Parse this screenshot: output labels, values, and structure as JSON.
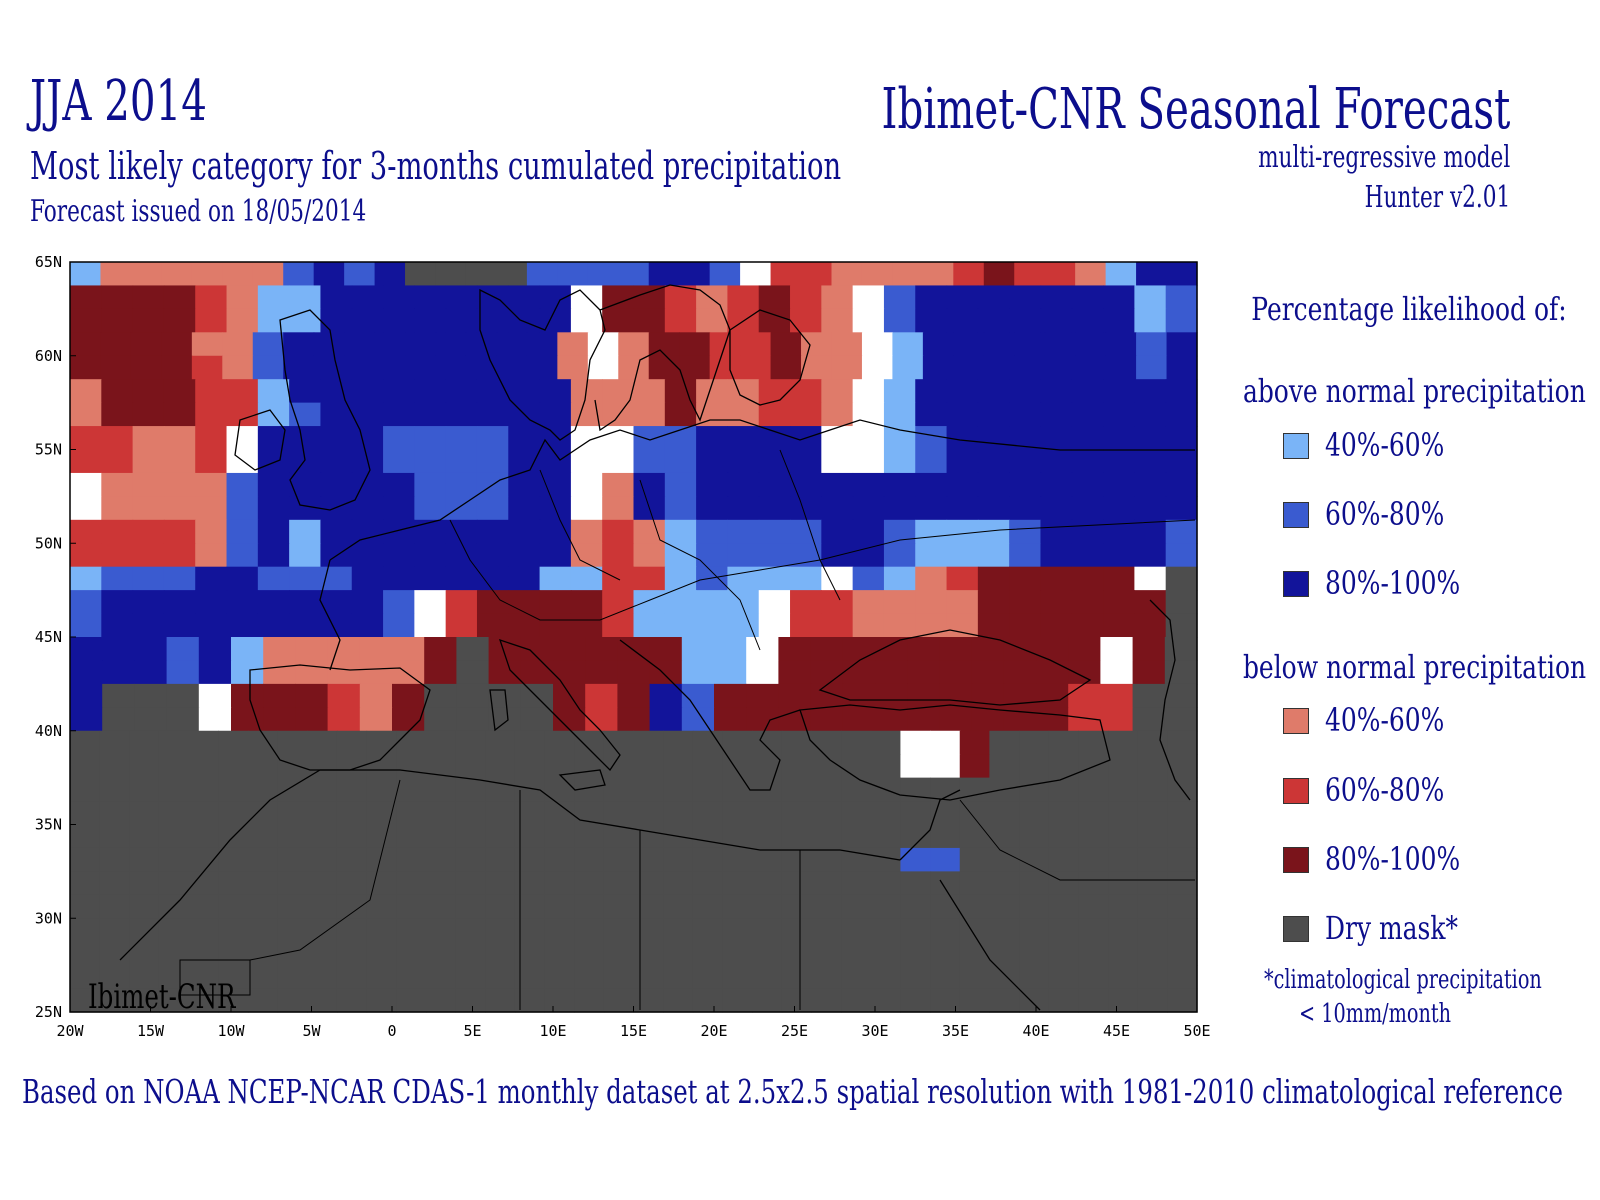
{
  "header": {
    "season": "JJA 2014",
    "subtitle": "Most likely category for 3-months cumulated precipitation",
    "issued": "Forecast issued on 18/05/2014",
    "org_title": "Ibimet-CNR Seasonal Forecast",
    "model": "multi-regressive model",
    "version": "Hunter v2.01"
  },
  "map": {
    "watermark": "Ibimet-CNR",
    "lat_labels": [
      "65N",
      "60N",
      "55N",
      "50N",
      "45N",
      "40N",
      "35N",
      "30N",
      "25N"
    ],
    "lon_labels": [
      "20W",
      "15W",
      "10W",
      "5W",
      "0",
      "5E",
      "10E",
      "15E",
      "20E",
      "25E",
      "30E",
      "35E",
      "40E",
      "45E",
      "50E"
    ],
    "lon_range": [
      -20,
      50
    ],
    "lat_range": [
      25,
      65
    ],
    "cell_size_deg": 2.5,
    "colors": {
      "A1": "#7ab4f7",
      "A2": "#3a5bd0",
      "A3": "#12149a",
      "B1": "#df7b6a",
      "B2": "#cc3636",
      "B3": "#7a141b",
      "D": "#4d4d4d",
      "W": "#ffffff"
    },
    "grid_rows": [
      "A1B1B1B1B1B1B1A2A3A2A3D D D D A2A2A2A2A3A3A2W B2B2B1B1B1B1B2B3B2B2B1A1A3A3",
      "B3B3B3B3B2B1A1A1A3A3A3A3A3A3A3A3W B3B3B2B1B2B3B2B1W A2A3A3A3A3A3A3A3A1A2",
      "B3B3B3B3B2B1A1A1A3A3A3A3A3A3A3A3W B3B3B2B1B2B3B2B1W A2A3A3A3A3A3A3A3A1A2",
      "B3B3B3B3B1B1A2A3A3A3A3A3A3A3A3A3B1W B1B3B3B2B2B3B1B1W A1A3A3A3A3A3A3A3A2A3",
      "B3B3B3B3B2B1A2A3A3A3A3A3A3A3A3A3B1W B1B3B3B2B2B3B1B1W A1A3A3A3A3A3A3A3A2A3",
      "B1B3B3B3B2B2A1A3A3A3A3A3A3A3A3A3B1B1B1B3B1B1B2B2B1W A1A3A3A3A3A3A3A3A3A3",
      "B1B3B3B3B2B2A1A2A3A3A3A3A3A3A3A3B1B1B1B3B1B1B2B2B1W A1A3A3A3A3A3A3A3A3A3",
      "B2B2B1B1B2W A3A3A3A3A2A2A2A2A3A3W W A2A2A3A3A3A3W W A1A2A3A3A3A3A3A3A3A3",
      "B2B2B1B1B2W A3A3A3A3A2A2A2A2A3A3W W A2A2A3A3A3A3W W A1A2A3A3A3A3A3A3A3A3",
      "W B1B1B1B1A2A3A3A3A3A3A2A2A2A3A3W B1A3A2A3A3A3A3A3A3A3A3A3A3A3A3A3A3A3A3",
      "W B1B1B1B1A2A3A3A3A3A3A2A2A2A3A3W B1A3A2A3A3A3A3A3A3A3A3A3A3A3A3A3A3A3A3",
      "B2B2B2B2B1A2A3A1A3A3A3A3A3A3A3A3B1B2B1A1A2A2A2A2A3A3A2A1A1A1A2A3A3A3A3A2",
      "B2B2B2B2B1A2A3A1A3A3A3A3A3A3A3A3B1B2B1A1A2A2A2A2A3A3A2A1A1A1A2A3A3A3A3A2",
      "A1A2A2A2A3A3A2A2A2A3A3A3A3A3A3A1A1B2B2A1A2A1A1A1W A2A1B1B2B3B3B3B3B3W D ",
      "A2A3A3A3A3A3A3A3A3A3A2W B2B3B3B3B3B2A1A1A1A1W B2B2B1B1B1B1B3B3B3B3B3B3D ",
      "A2A3A3A3A3A3A3A3A3A3A2W B2B3B3B3B3B2A1A1A1A1W B2B2B1B1B1B1B3B3B3B3B3B3D ",
      "A3A3A3A2A3A1B1B1B1B1B1B3D B3B3B3B3B3B3A1A1W B3B3B3B3B3B3B3B3B3B3W B3D ",
      "A3A3A3A2A3A1B1B1B1B1B1B3D B3B3B3B3B3B3A1A1W B3B3B3B3B3B3B3B3B3B3W B3D ",
      "A3D D D W B3B3B3B2B1B3D D D D B3B2B3A3A2B3B3B3B3B3B3B3B3B3B3B3B2B2D D ",
      "A3D D D W B3B3B3B2B1B3D D D D B3B2B3A3A2B3B3B3B3B3B3B3B3B3B3B3B2B2D D ",
      "D D D D D D D D D D D D D D D D D D D D D D D D D D D D W W B3D D D D D D D ",
      "D D D D D D D D D D D D D D D D D D D D D D D D D D D D W W B3D D D D D D D ",
      "D D D D D D D D D D D D D D D D D D D D D D D D D D D D D D D D D D D D D D ",
      "D D D D D D D D D D D D D D D D D D D D D D D D D D D D D D D D D D D D D D ",
      "D D D D D D D D D D D D D D D D D D D D D D D D D D D D D D D D D D D D D D ",
      "D D D D D D D D D D D D D D D D D D D D D D D D D D D D A2A2D D D D D D D D ",
      "D D D D D D D D D D D D D D D D D D D D D D D D D D D D D D D D D D D D D D ",
      "D D D D D D D D D D D D D D D D D D D D D D D D D D D D D D D D D D D D D D ",
      "D D D D D D D D D D D D D D D D D D D D D D D D D D D D D D D D D D D D D D ",
      "D D D D D D D D D D D D D D D D D D D D D D D D D D D D D D D D D D D D D D ",
      "D D D D D D D D D D D D D D D D D D D D D D D D D D D D D D D D D D D D D D ",
      "D D D D D D D D D D D D D D D D D D D D D D D D D D D D D D D D D D D D D D "
    ]
  },
  "legend": {
    "title": "Percentage likelihood of:",
    "above_heading": "above normal precipitation",
    "below_heading": "below normal precipitation",
    "above_items": [
      {
        "label": "40%-60%",
        "color": "#7ab4f7"
      },
      {
        "label": "60%-80%",
        "color": "#3a5bd0"
      },
      {
        "label": "80%-100%",
        "color": "#12149a"
      }
    ],
    "below_items": [
      {
        "label": "40%-60%",
        "color": "#df7b6a"
      },
      {
        "label": "60%-80%",
        "color": "#cc3636"
      },
      {
        "label": "80%-100%",
        "color": "#7a141b"
      }
    ],
    "dry_item": {
      "label": "Dry mask*",
      "color": "#4d4d4d"
    },
    "note_line1": "*climatological precipitation",
    "note_line2": "< 10mm/month"
  },
  "footer": {
    "text": "Based on NOAA NCEP-NCAR CDAS-1 monthly dataset at 2.5x2.5 spatial resolution with 1981-2010 climatological reference"
  }
}
